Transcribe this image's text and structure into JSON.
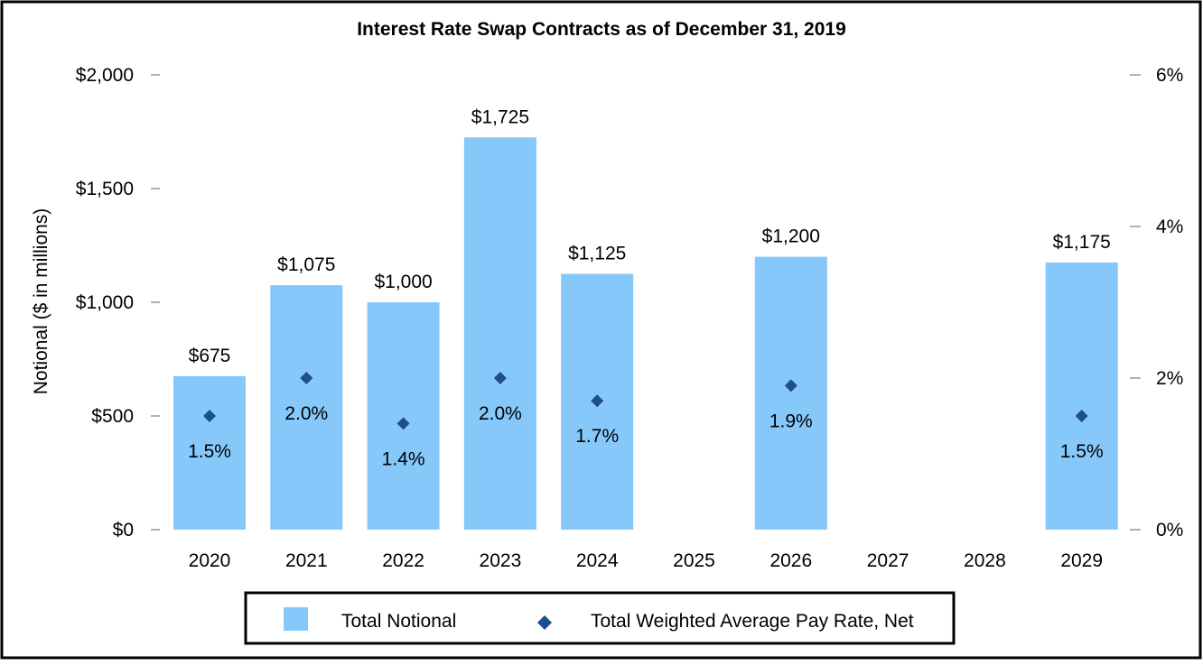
{
  "chart_data": {
    "type": "bar",
    "title": "Interest Rate Swap Contracts as of December 31, 2019",
    "categories": [
      "2020",
      "2021",
      "2022",
      "2023",
      "2024",
      "2025",
      "2026",
      "2027",
      "2028",
      "2029"
    ],
    "series": [
      {
        "name": "Total Notional",
        "type": "bar",
        "axis": "left",
        "values": [
          675,
          1075,
          1000,
          1725,
          1125,
          null,
          1200,
          null,
          null,
          1175
        ],
        "labels": [
          "$675",
          "$1,075",
          "$1,000",
          "$1,725",
          "$1,125",
          null,
          "$1,200",
          null,
          null,
          "$1,175"
        ]
      },
      {
        "name": "Total Weighted Average Pay Rate, Net",
        "type": "scatter",
        "marker": "diamond",
        "axis": "right",
        "values": [
          1.5,
          2.0,
          1.4,
          2.0,
          1.7,
          null,
          1.9,
          null,
          null,
          1.5
        ],
        "labels": [
          "1.5%",
          "2.0%",
          "1.4%",
          "2.0%",
          "1.7%",
          null,
          "1.9%",
          null,
          null,
          "1.5%"
        ]
      }
    ],
    "ylabel": "Notional ($ in millions)",
    "ylim": [
      0,
      2000
    ],
    "yticks": [
      "$0",
      "$500",
      "$1,000",
      "$1,500",
      "$2,000"
    ],
    "y2lim": [
      0,
      6
    ],
    "y2ticks": [
      "0%",
      "2%",
      "4%",
      "6%"
    ],
    "grid": false,
    "legend": "bottom",
    "colors": {
      "bar": "#87c8fb",
      "marker": "#1f4e8c",
      "tick": "#999999",
      "frame": "#000000"
    }
  }
}
